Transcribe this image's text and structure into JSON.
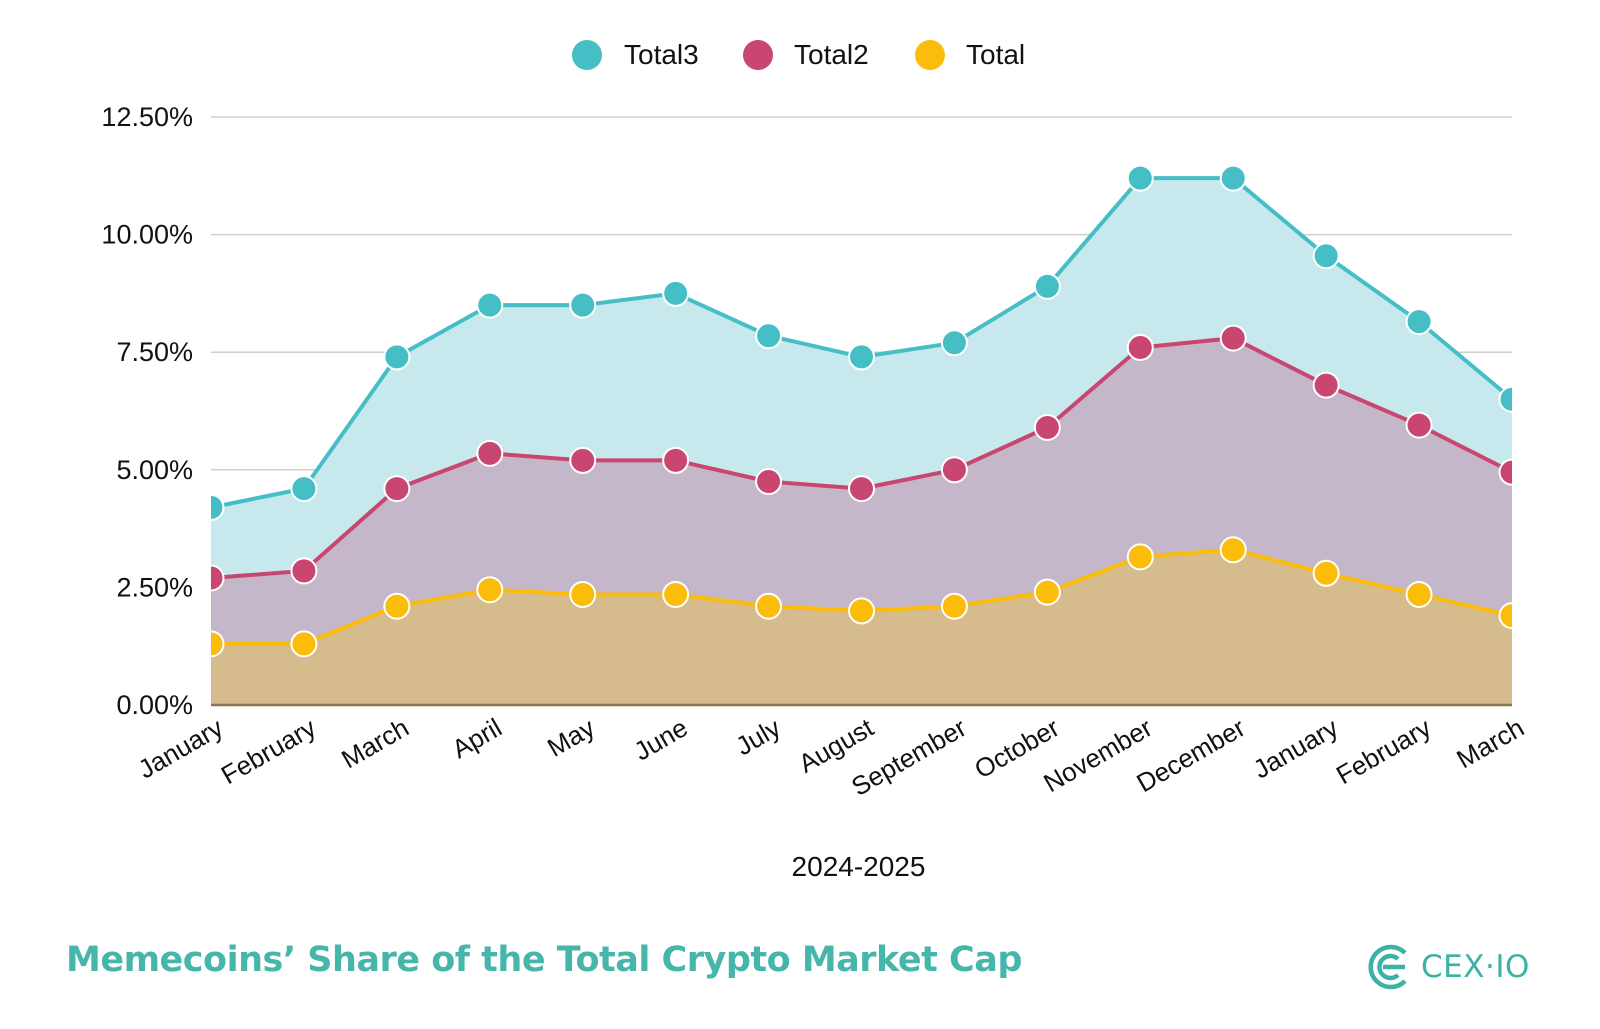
{
  "chart_data": {
    "type": "area",
    "xlabel": "2024-2025",
    "categories": [
      "January",
      "February",
      "March",
      "April",
      "May",
      "June",
      "July",
      "August",
      "September",
      "October",
      "November",
      "December",
      "January",
      "February",
      "March"
    ],
    "ylim": [
      0,
      12.5
    ],
    "yticks": [
      "0.00%",
      "2.50%",
      "5.00%",
      "7.50%",
      "10.00%",
      "12.50%"
    ],
    "ytick_values": [
      0,
      2.5,
      5,
      7.5,
      10,
      12.5
    ],
    "grid": true,
    "legend_position": "top-center",
    "series": [
      {
        "name": "Total3",
        "color": "#45bec6",
        "fill": "#c7e9ed",
        "values": [
          4.2,
          4.6,
          7.4,
          8.5,
          8.5,
          8.75,
          7.85,
          7.4,
          7.7,
          8.9,
          11.2,
          11.2,
          9.55,
          8.15,
          6.5
        ]
      },
      {
        "name": "Total2",
        "color": "#c94670",
        "fill": "#c4b7c9",
        "values": [
          2.7,
          2.85,
          4.6,
          5.35,
          5.2,
          5.2,
          4.75,
          4.6,
          5.0,
          5.9,
          7.6,
          7.8,
          6.8,
          5.95,
          4.95
        ]
      },
      {
        "name": "Total",
        "color": "#fbbc0a",
        "fill": "#d6bb8c",
        "values": [
          1.3,
          1.3,
          2.1,
          2.45,
          2.35,
          2.35,
          2.1,
          2.0,
          2.1,
          2.4,
          3.15,
          3.3,
          2.8,
          2.35,
          1.9
        ]
      }
    ]
  },
  "footer": {
    "title": "Memecoins’ Share of the Total Crypto Market Cap",
    "logo_text": "CEX·IO",
    "brand_color": "#46b6ab"
  }
}
